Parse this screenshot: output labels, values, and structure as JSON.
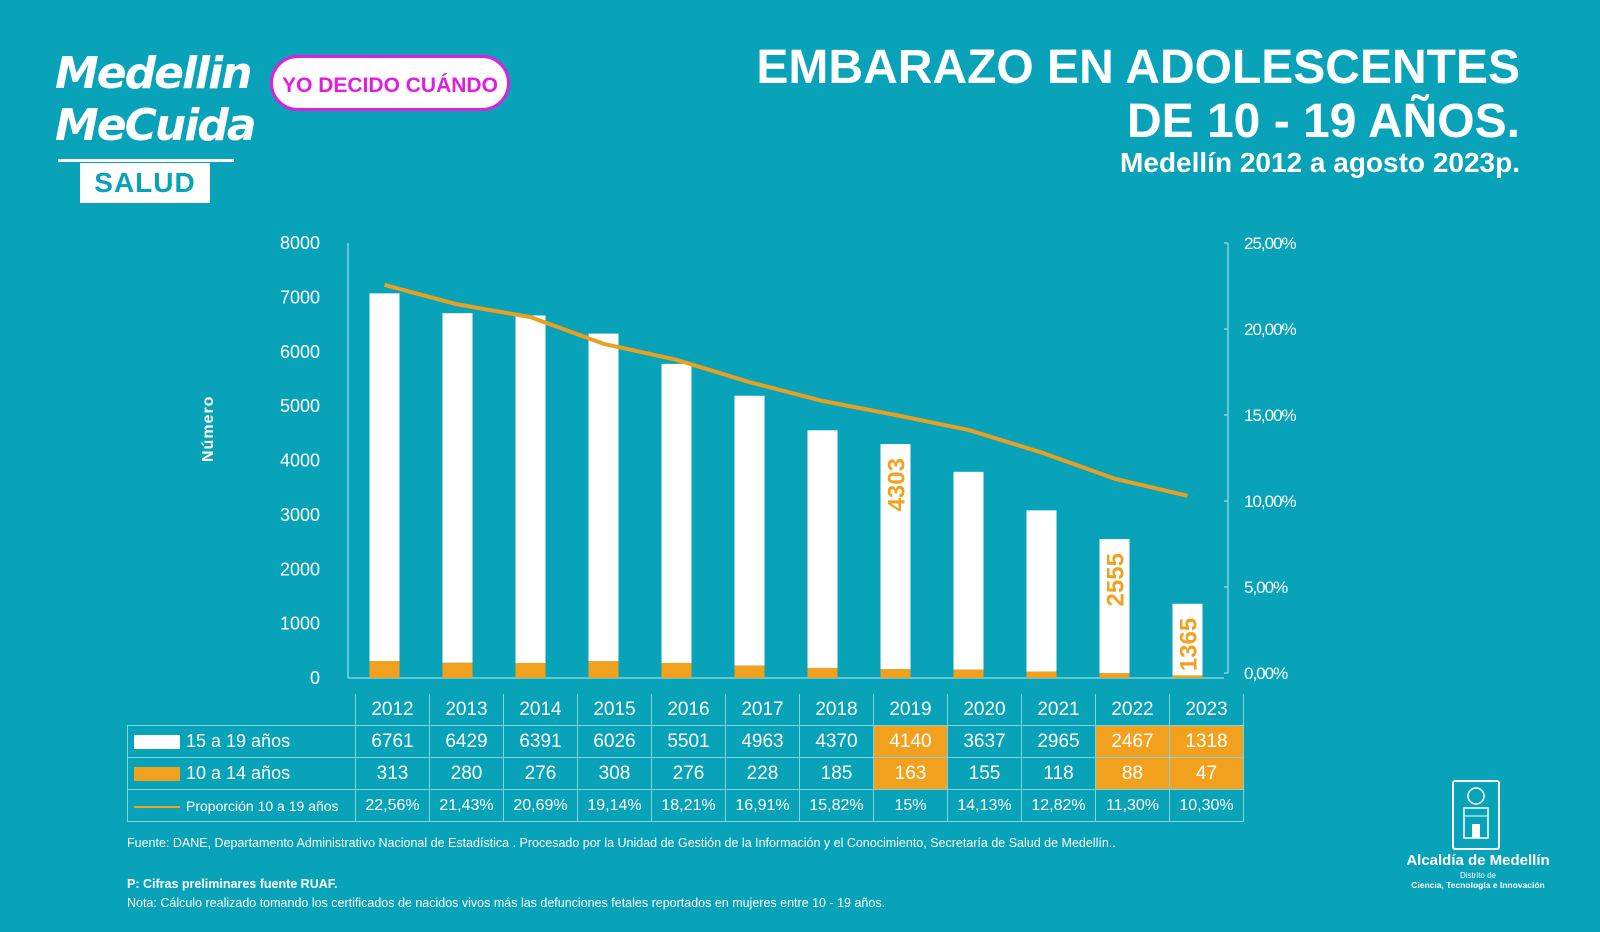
{
  "brand": {
    "logo_line1": "Medellin",
    "logo_line2": "MeCuida",
    "logo_salud": "SALUD",
    "campaign_pill": "YO DECIDO CUÁNDO"
  },
  "header": {
    "title_line1": "EMBARAZO EN ADOLESCENTES",
    "title_line2": "DE 10 - 19 AÑOS.",
    "subtitle": "Medellín 2012 a agosto 2023p."
  },
  "colors": {
    "background": "#09a3b9",
    "bar_15_19": "#ffffff",
    "bar_10_14": "#f2a11f",
    "line": "#e8a022",
    "highlight": "#f2a11f",
    "pill_accent": "#e01ee0"
  },
  "chart_data": {
    "type": "bar",
    "stacked": true,
    "title": "EMBARAZO EN ADOLESCENTES DE 10 - 19 AÑOS. Medellín 2012 a agosto 2023p.",
    "xlabel": "",
    "ylabel": "Número",
    "ylim": [
      0,
      8000
    ],
    "yticks": [
      "0",
      "1000",
      "2000",
      "3000",
      "4000",
      "5000",
      "6000",
      "7000",
      "8000"
    ],
    "y2lim": [
      0,
      25
    ],
    "y2ticks": [
      "0,00%",
      "5,00%",
      "10,00%",
      "15,00%",
      "20,00%",
      "25,00%"
    ],
    "categories": [
      "2012",
      "2013",
      "2014",
      "2015",
      "2016",
      "2017",
      "2018",
      "2019",
      "2020",
      "2021",
      "2022",
      "2023"
    ],
    "series": [
      {
        "name": "15 a 19 años",
        "type": "bar",
        "values": [
          6761,
          6429,
          6391,
          6026,
          5501,
          4963,
          4370,
          4140,
          3637,
          2965,
          2467,
          1318
        ]
      },
      {
        "name": "10 a 14 años",
        "type": "bar",
        "values": [
          313,
          280,
          276,
          308,
          276,
          228,
          185,
          163,
          155,
          118,
          88,
          47
        ]
      },
      {
        "name": "Proporción 10 a 19 años",
        "type": "line",
        "axis": "right",
        "values": [
          22.56,
          21.43,
          20.69,
          19.14,
          18.21,
          16.91,
          15.82,
          15,
          14.13,
          12.82,
          11.3,
          10.3
        ]
      }
    ],
    "table_proportion_labels": [
      "22,56%",
      "21,43%",
      "20,69%",
      "19,14%",
      "18,21%",
      "16,91%",
      "15,82%",
      "15%",
      "14,13%",
      "12,82%",
      "11,30%",
      "10,30%"
    ],
    "annotations": [
      {
        "category": "2019",
        "text": "4303"
      },
      {
        "category": "2022",
        "text": "2555"
      },
      {
        "category": "2023",
        "text": "1365"
      }
    ],
    "highlighted_categories": [
      "2019",
      "2022",
      "2023"
    ],
    "grid": false,
    "legend": "bottom-left (data table)"
  },
  "footer": {
    "source": "Fuente: DANE, Departamento Administrativo Nacional de Estadística . Procesado por la Unidad de Gestión de la Información y el Conocimiento, Secretaría de Salud de Medellín..",
    "preliminary": "P: Cifras preliminares fuente RUAF.",
    "note": "Nota: Cálculo realizado tomando los certificados de nacidos vivos más las defunciones fetales reportados en mujeres entre 10 - 19 años."
  },
  "institution": {
    "name": "Alcaldía de Medellín",
    "sub1": "Distrito de",
    "sub2": "Ciencia, Tecnología e Innovación"
  }
}
